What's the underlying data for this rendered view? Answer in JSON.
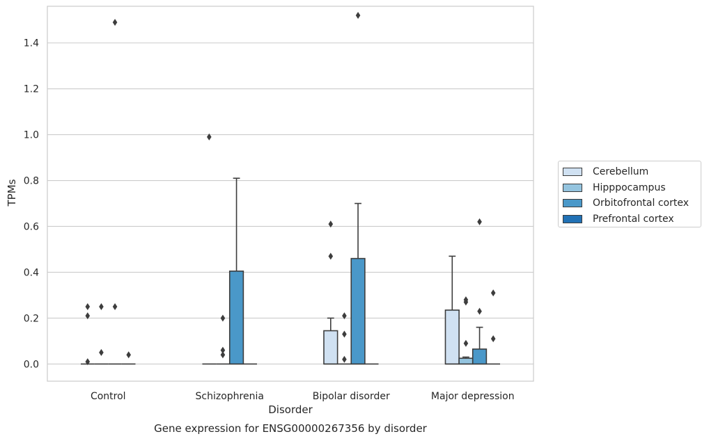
{
  "chart_data": {
    "type": "box",
    "title": "",
    "caption": "Gene expression for ENSG00000267356 by disorder",
    "xlabel": "Disorder",
    "ylabel": "TPMs",
    "ylim": [
      -0.075,
      1.56
    ],
    "yticks": [
      "0.0",
      "0.2",
      "0.4",
      "0.6",
      "0.8",
      "1.0",
      "1.2",
      "1.4"
    ],
    "grid": "horizontal",
    "legend_position": "right",
    "categories": [
      "Control",
      "Schizophrenia",
      "Bipolar disorder",
      "Major depression"
    ],
    "series": [
      {
        "name": "Cerebellum",
        "color": "#d0e1f2",
        "boxes": [
          {
            "category": "Control",
            "q1": 0,
            "median": 0,
            "q3": 0,
            "whisker_low": 0,
            "whisker_high": 0,
            "outliers": [
              0.01,
              0.21,
              0.25
            ]
          },
          {
            "category": "Schizophrenia",
            "q1": 0,
            "median": 0,
            "q3": 0,
            "whisker_low": 0,
            "whisker_high": 0,
            "outliers": [
              0.99
            ]
          },
          {
            "category": "Bipolar disorder",
            "q1": 0,
            "median": 0,
            "q3": 0.145,
            "whisker_low": 0,
            "whisker_high": 0.2,
            "outliers": [
              0.47,
              0.61
            ]
          },
          {
            "category": "Major depression",
            "q1": 0,
            "median": 0,
            "q3": 0.235,
            "whisker_low": 0,
            "whisker_high": 0.47,
            "outliers": []
          }
        ]
      },
      {
        "name": "Hipppocampus",
        "color": "#94c4df",
        "boxes": [
          {
            "category": "Control",
            "q1": 0,
            "median": 0,
            "q3": 0,
            "whisker_low": 0,
            "whisker_high": 0,
            "outliers": [
              0.05,
              0.25
            ]
          },
          {
            "category": "Schizophrenia",
            "q1": 0,
            "median": 0,
            "q3": 0,
            "whisker_low": 0,
            "whisker_high": 0,
            "outliers": [
              0.04,
              0.06,
              0.2
            ]
          },
          {
            "category": "Bipolar disorder",
            "q1": 0,
            "median": 0,
            "q3": 0,
            "whisker_low": 0,
            "whisker_high": 0,
            "outliers": [
              0.02,
              0.13,
              0.21
            ]
          },
          {
            "category": "Major depression",
            "q1": 0,
            "median": 0,
            "q3": 0.025,
            "whisker_low": 0,
            "whisker_high": 0.03,
            "outliers": [
              0.09,
              0.27,
              0.28
            ]
          }
        ]
      },
      {
        "name": "Orbitofrontal cortex",
        "color": "#4a98c9",
        "boxes": [
          {
            "category": "Control",
            "q1": 0,
            "median": 0,
            "q3": 0,
            "whisker_low": 0,
            "whisker_high": 0,
            "outliers": [
              0.25,
              1.49
            ]
          },
          {
            "category": "Schizophrenia",
            "q1": 0,
            "median": 0,
            "q3": 0.405,
            "whisker_low": 0,
            "whisker_high": 0.81,
            "outliers": []
          },
          {
            "category": "Bipolar disorder",
            "q1": 0,
            "median": 0,
            "q3": 0.46,
            "whisker_low": 0,
            "whisker_high": 0.7,
            "outliers": [
              1.52
            ]
          },
          {
            "category": "Major depression",
            "q1": 0,
            "median": 0,
            "q3": 0.065,
            "whisker_low": 0,
            "whisker_high": 0.16,
            "outliers": [
              0.23,
              0.62
            ]
          }
        ]
      },
      {
        "name": "Prefrontal cortex",
        "color": "#2171b5",
        "boxes": [
          {
            "category": "Control",
            "q1": 0,
            "median": 0,
            "q3": 0,
            "whisker_low": 0,
            "whisker_high": 0,
            "outliers": [
              0.04
            ]
          },
          {
            "category": "Schizophrenia",
            "q1": 0,
            "median": 0,
            "q3": 0,
            "whisker_low": 0,
            "whisker_high": 0,
            "outliers": []
          },
          {
            "category": "Bipolar disorder",
            "q1": 0,
            "median": 0,
            "q3": 0,
            "whisker_low": 0,
            "whisker_high": 0,
            "outliers": []
          },
          {
            "category": "Major depression",
            "q1": 0,
            "median": 0,
            "q3": 0,
            "whisker_low": 0,
            "whisker_high": 0,
            "outliers": [
              0.11,
              0.31
            ]
          }
        ]
      }
    ]
  }
}
